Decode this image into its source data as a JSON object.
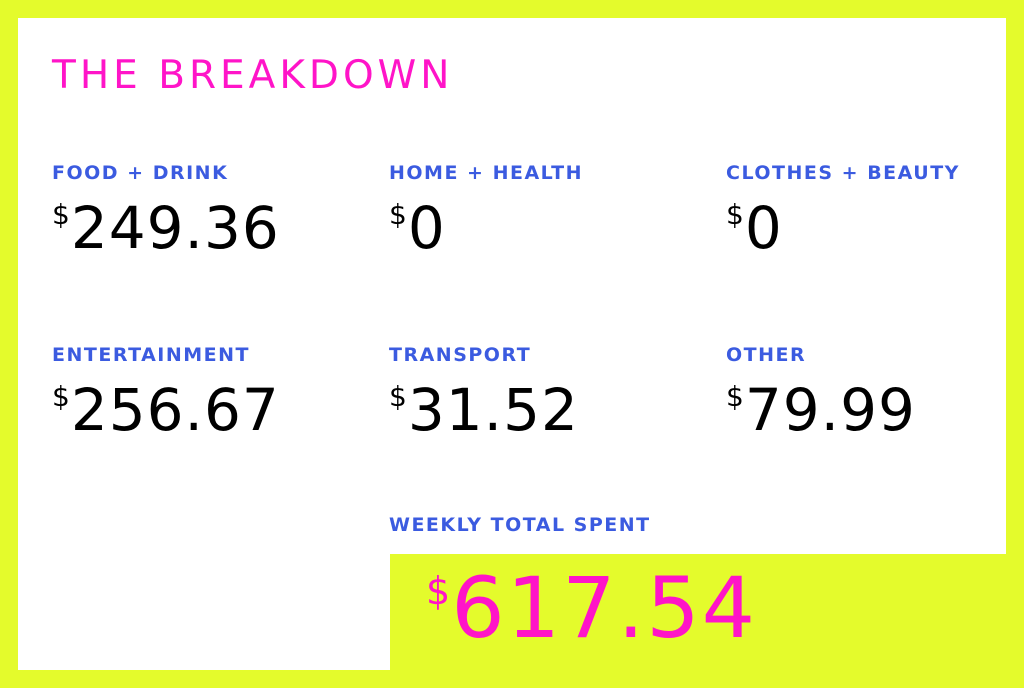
{
  "title": "THE BREAKDOWN",
  "currency_symbol": "$",
  "categories": [
    {
      "label": "FOOD + DRINK",
      "value": "249.36"
    },
    {
      "label": "HOME + HEALTH",
      "value": "0"
    },
    {
      "label": "CLOTHES + BEAUTY",
      "value": "0"
    },
    {
      "label": "ENTERTAINMENT",
      "value": "256.67"
    },
    {
      "label": "TRANSPORT",
      "value": "31.52"
    },
    {
      "label": "OTHER",
      "value": "79.99"
    }
  ],
  "total": {
    "label": "WEEKLY TOTAL SPENT",
    "value": "617.54"
  },
  "colors": {
    "background": "#e4fb2c",
    "panel": "#ffffff",
    "title": "#ff14c8",
    "label": "#3b5be0",
    "value": "#000000",
    "total_value": "#ff14c8"
  }
}
